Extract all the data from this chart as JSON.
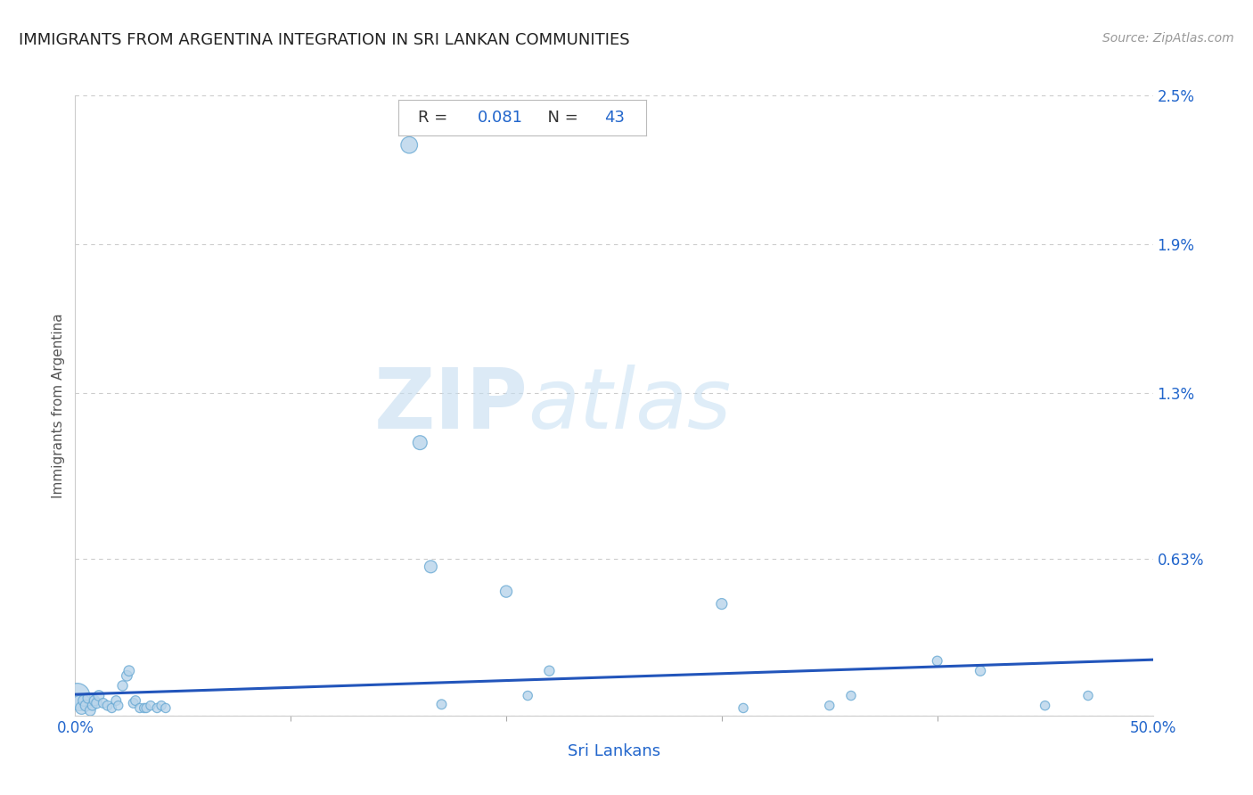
{
  "title": "IMMIGRANTS FROM ARGENTINA INTEGRATION IN SRI LANKAN COMMUNITIES",
  "source": "Source: ZipAtlas.com",
  "xlabel": "Sri Lankans",
  "ylabel": "Immigrants from Argentina",
  "R": 0.081,
  "N": 43,
  "x_min": 0.0,
  "x_max": 0.5,
  "y_min": 0.0,
  "y_max": 0.025,
  "x_ticks": [
    0.0,
    0.5
  ],
  "x_tick_labels": [
    "0.0%",
    "50.0%"
  ],
  "y_ticks": [
    0.0,
    0.0063,
    0.013,
    0.019,
    0.025
  ],
  "y_tick_labels": [
    "",
    "0.63%",
    "1.3%",
    "1.9%",
    "2.5%"
  ],
  "scatter_color": "#b8d4ea",
  "scatter_edge_color": "#6aaad4",
  "line_color": "#2255bb",
  "background_color": "#ffffff",
  "watermark_zip": "ZIP",
  "watermark_atlas": "atlas",
  "line_intercept": 0.00085,
  "line_slope": 0.0028,
  "scatter_x": [
    0.001,
    0.002,
    0.003,
    0.004,
    0.005,
    0.006,
    0.007,
    0.008,
    0.009,
    0.01,
    0.011,
    0.013,
    0.015,
    0.017,
    0.019,
    0.02,
    0.022,
    0.024,
    0.025,
    0.027,
    0.028,
    0.03,
    0.032,
    0.033,
    0.035,
    0.038,
    0.04,
    0.042,
    0.155,
    0.16,
    0.165,
    0.17,
    0.2,
    0.21,
    0.22,
    0.3,
    0.31,
    0.35,
    0.36,
    0.4,
    0.42,
    0.45,
    0.47
  ],
  "scatter_y": [
    0.0008,
    0.0005,
    0.0003,
    0.0006,
    0.0004,
    0.0007,
    0.0002,
    0.0004,
    0.0006,
    0.0005,
    0.0008,
    0.0005,
    0.0004,
    0.0003,
    0.0006,
    0.0004,
    0.0012,
    0.0016,
    0.0018,
    0.0005,
    0.0006,
    0.0003,
    0.0003,
    0.0003,
    0.0004,
    0.0003,
    0.0004,
    0.0003,
    0.023,
    0.011,
    0.006,
    0.00045,
    0.005,
    0.0008,
    0.0018,
    0.0045,
    0.0003,
    0.0004,
    0.0008,
    0.0022,
    0.0018,
    0.0004,
    0.0008
  ],
  "scatter_sizes": [
    400,
    150,
    100,
    80,
    80,
    70,
    70,
    60,
    70,
    70,
    70,
    60,
    60,
    55,
    60,
    55,
    65,
    70,
    70,
    60,
    60,
    55,
    55,
    55,
    55,
    55,
    55,
    55,
    180,
    130,
    100,
    60,
    90,
    55,
    65,
    75,
    55,
    55,
    55,
    60,
    65,
    55,
    55
  ]
}
